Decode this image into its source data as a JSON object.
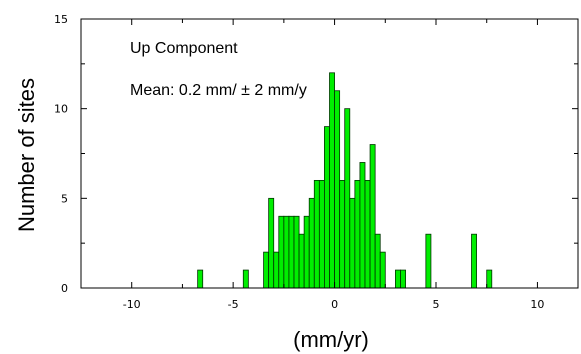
{
  "chart_data": {
    "type": "bar",
    "title": "",
    "xlabel": "(mm/yr)",
    "ylabel": "Number of sites",
    "xlim": [
      -12.5,
      12
    ],
    "ylim": [
      0,
      15
    ],
    "grid": false,
    "bar_width": 0.25,
    "bar_color": "#00ee00",
    "bar_edge_color": "#003300",
    "x_ticks": [
      -10,
      -5,
      0,
      5,
      10
    ],
    "x_tick_labels": [
      "-10",
      "-5",
      "0",
      "5",
      "10"
    ],
    "y_ticks": [
      0,
      5,
      10,
      15
    ],
    "y_tick_labels": [
      "0",
      "5",
      "10",
      "15"
    ],
    "annotations": [
      "Up Component",
      "Mean: 0.2 mm/ ± 2 mm/y"
    ],
    "x": [
      -6.75,
      -4.5,
      -3.5,
      -3.25,
      -3.0,
      -2.75,
      -2.5,
      -2.25,
      -2.0,
      -1.75,
      -1.5,
      -1.25,
      -1.0,
      -0.75,
      -0.5,
      -0.25,
      0.0,
      0.25,
      0.5,
      0.75,
      1.0,
      1.25,
      1.5,
      1.75,
      2.0,
      2.25,
      3.0,
      3.25,
      4.5,
      6.75,
      7.5
    ],
    "values": [
      1,
      1,
      2,
      5,
      2,
      4,
      4,
      4,
      4,
      3,
      4,
      5,
      6,
      6,
      9,
      12,
      11,
      6,
      10,
      5,
      6,
      7,
      6,
      8,
      3,
      2,
      1,
      1,
      3,
      3,
      1
    ]
  }
}
